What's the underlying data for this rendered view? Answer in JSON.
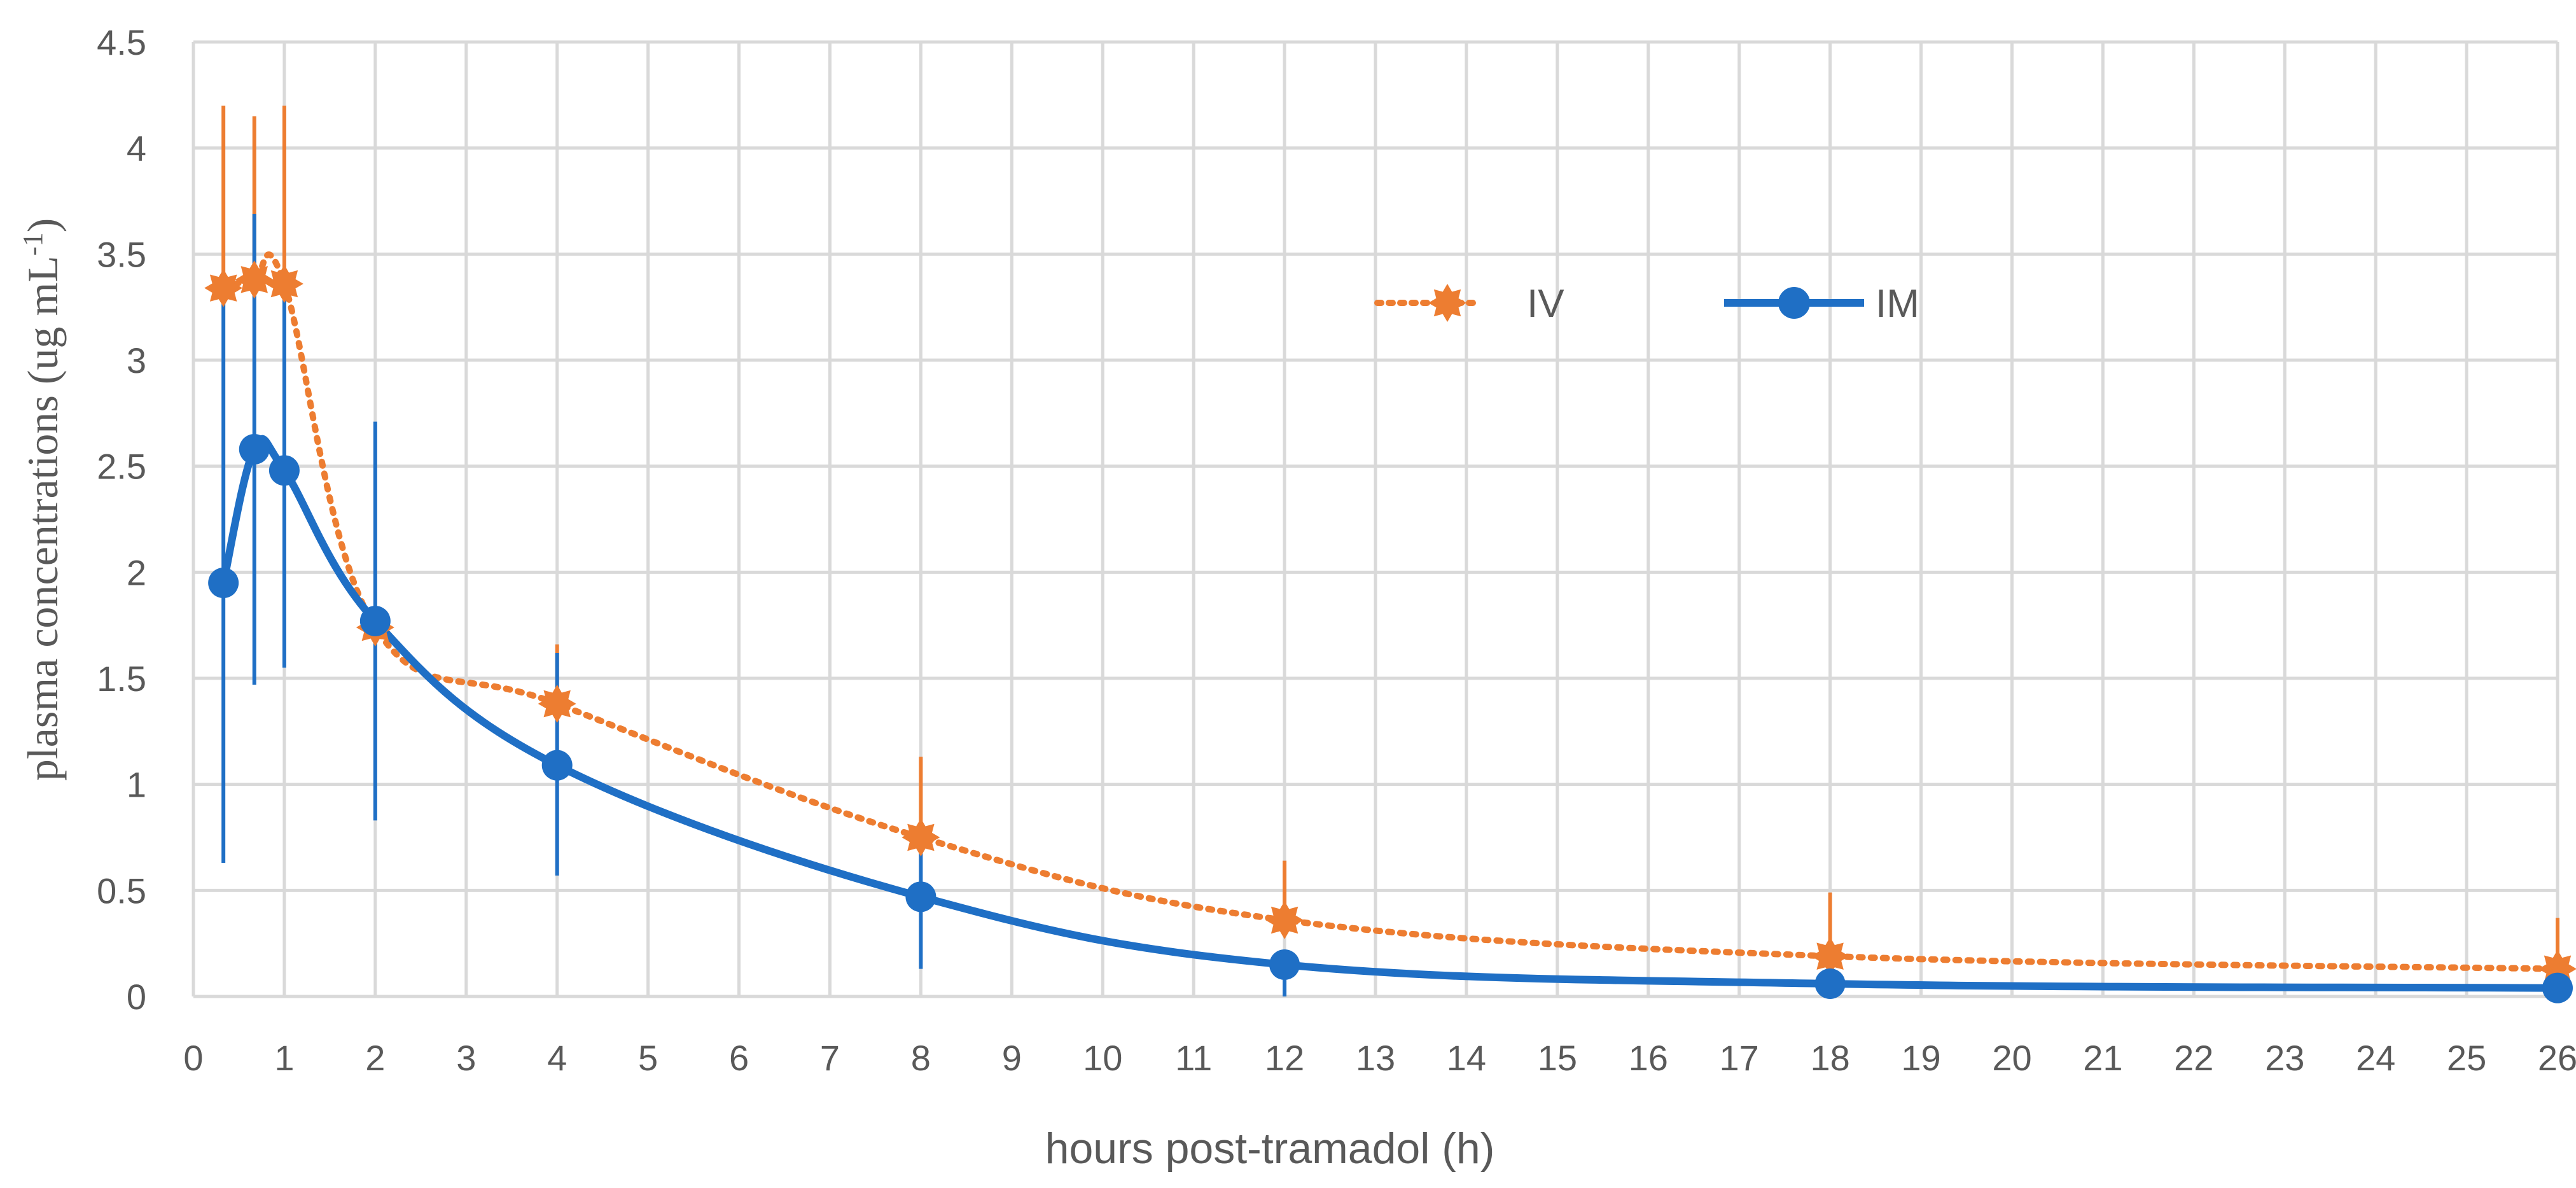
{
  "chart_data": {
    "type": "line",
    "title": "",
    "xlabel": "hours post-tramadol (h)",
    "ylabel_main": "plasma concentrations  (ug mL",
    "ylabel_sup": "-1",
    "ylabel_close": ")",
    "xlim": [
      0,
      26
    ],
    "ylim": [
      0,
      4.5
    ],
    "xticks": [
      0,
      1,
      2,
      3,
      4,
      5,
      6,
      7,
      8,
      9,
      10,
      11,
      12,
      13,
      14,
      15,
      16,
      17,
      18,
      19,
      20,
      21,
      22,
      23,
      24,
      25,
      26
    ],
    "xtick_labels": [
      "0",
      "1",
      "2",
      "3",
      "4",
      "5",
      "6",
      "7",
      "8",
      "9",
      "10",
      "11",
      "12",
      "13",
      "14",
      "15",
      "16",
      "17",
      "18",
      "19",
      "20",
      "21",
      "22",
      "23",
      "24",
      "25",
      "26"
    ],
    "yticks": [
      0,
      0.5,
      1,
      1.5,
      2,
      2.5,
      3,
      3.5,
      4,
      4.5
    ],
    "ytick_labels": [
      "0",
      "0.5",
      "1",
      "1.5",
      "2",
      "2.5",
      "3",
      "3.5",
      "4",
      "4.5"
    ],
    "grid": true,
    "legend_position": "top-right",
    "series": [
      {
        "name": "IV",
        "color": "#ED7D31",
        "line_style": "dotted",
        "marker": "star",
        "x": [
          0.33,
          0.67,
          1,
          2,
          4,
          8,
          12,
          18,
          26
        ],
        "y": [
          3.34,
          3.38,
          3.36,
          1.74,
          1.38,
          0.75,
          0.36,
          0.19,
          0.13
        ],
        "err_low": [
          3.34,
          3.38,
          3.36,
          1.74,
          1.38,
          0.75,
          0.36,
          0.19,
          0.13
        ],
        "err_high": [
          4.2,
          4.15,
          4.2,
          1.74,
          1.66,
          1.13,
          0.64,
          0.49,
          0.37
        ]
      },
      {
        "name": "IM",
        "color": "#1F6FC5",
        "line_style": "solid",
        "marker": "circle",
        "x": [
          0.33,
          0.67,
          1,
          2,
          4,
          8,
          12,
          18,
          26
        ],
        "y": [
          1.95,
          2.58,
          2.48,
          1.77,
          1.09,
          0.47,
          0.15,
          0.06,
          0.04
        ],
        "err_low": [
          0.63,
          1.47,
          1.55,
          0.83,
          0.57,
          0.13,
          0.0,
          0.06,
          0.04
        ],
        "err_high": [
          3.3,
          3.69,
          3.3,
          2.71,
          1.62,
          0.7,
          0.15,
          0.06,
          0.04
        ]
      }
    ]
  }
}
